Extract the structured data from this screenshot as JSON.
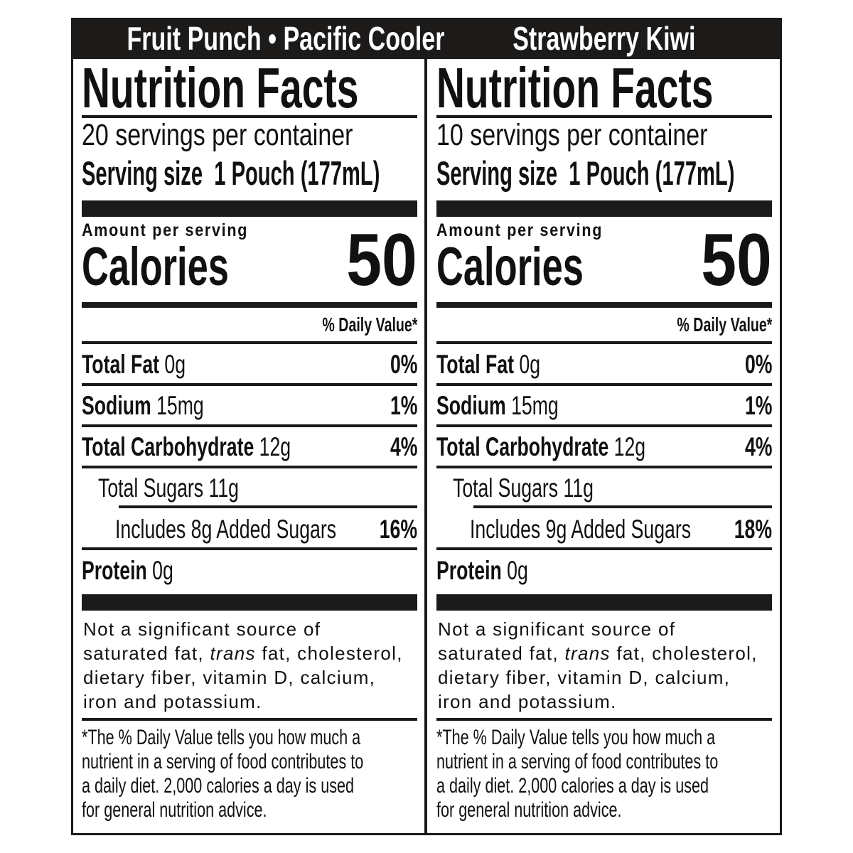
{
  "panels": [
    {
      "flavor": "Fruit Punch • Pacific Cooler",
      "title": "Nutrition Facts",
      "servings_per_container": "20 servings per container",
      "serving_size_label": "Serving size",
      "serving_size_value": "1 Pouch (177mL)",
      "amount_per_serving": "Amount per serving",
      "calories_label": "Calories",
      "calories_value": "50",
      "daily_value_header": "% Daily Value*",
      "nutrients": [
        {
          "label": "Total Fat",
          "amount": "0g",
          "dv": "0%"
        },
        {
          "label": "Sodium",
          "amount": "15mg",
          "dv": "1%"
        },
        {
          "label": "Total Carbohydrate",
          "amount": "12g",
          "dv": "4%"
        },
        {
          "label": "Total Sugars 11g",
          "amount": "",
          "dv": ""
        },
        {
          "label": "Includes 8g Added Sugars",
          "amount": "",
          "dv": "16%"
        },
        {
          "label": "Protein",
          "amount": "0g",
          "dv": ""
        }
      ],
      "not_significant": {
        "line1": "Not a significant source of",
        "line2a": "saturated fat, ",
        "line2b": "trans",
        "line2c": " fat, cholesterol,",
        "line3": "dietary fiber, vitamin D, calcium,",
        "line4": "iron and potassium."
      },
      "footnote": [
        "*The % Daily Value tells you how much a",
        "nutrient in a serving of food contributes to",
        "a daily diet. 2,000 calories a day is used",
        "for general nutrition advice."
      ]
    },
    {
      "flavor": "Strawberry Kiwi",
      "title": "Nutrition Facts",
      "servings_per_container": "10 servings per container",
      "serving_size_label": "Serving size",
      "serving_size_value": "1 Pouch (177mL)",
      "amount_per_serving": "Amount per serving",
      "calories_label": "Calories",
      "calories_value": "50",
      "daily_value_header": "% Daily Value*",
      "nutrients": [
        {
          "label": "Total Fat",
          "amount": "0g",
          "dv": "0%"
        },
        {
          "label": "Sodium",
          "amount": "15mg",
          "dv": "1%"
        },
        {
          "label": "Total Carbohydrate",
          "amount": "12g",
          "dv": "4%"
        },
        {
          "label": "Total Sugars 11g",
          "amount": "",
          "dv": ""
        },
        {
          "label": "Includes 9g Added Sugars",
          "amount": "",
          "dv": "18%"
        },
        {
          "label": "Protein",
          "amount": "0g",
          "dv": ""
        }
      ],
      "not_significant": {
        "line1": "Not a significant source of",
        "line2a": "saturated fat, ",
        "line2b": "trans",
        "line2c": " fat, cholesterol,",
        "line3": "dietary fiber, vitamin D, calcium,",
        "line4": "iron and potassium."
      },
      "footnote": [
        "*The % Daily Value tells you how much a",
        "nutrient in a serving of food contributes to",
        "a daily diet. 2,000 calories a day is used",
        "for general nutrition advice."
      ]
    }
  ]
}
